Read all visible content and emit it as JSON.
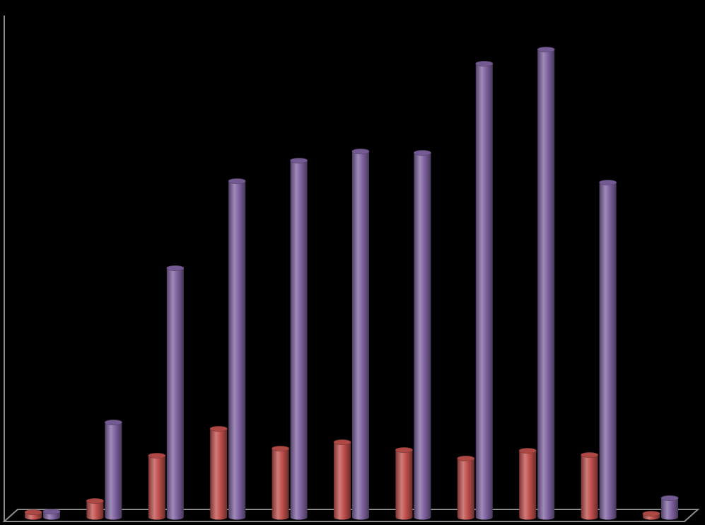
{
  "chart_data": {
    "type": "bar3d",
    "categories": [
      null,
      null,
      null,
      null,
      null,
      null,
      null,
      null,
      null,
      null,
      null
    ],
    "series": [
      {
        "color": "#c0504d",
        "values": [
          7,
          23,
          87,
          125,
          97,
          106,
          95,
          83,
          94,
          88,
          5
        ]
      },
      {
        "color": "#8064a2",
        "values": [
          8,
          134,
          352,
          475,
          504,
          517,
          515,
          641,
          661,
          473,
          27
        ]
      }
    ],
    "ylim": [
      0,
      700
    ]
  }
}
